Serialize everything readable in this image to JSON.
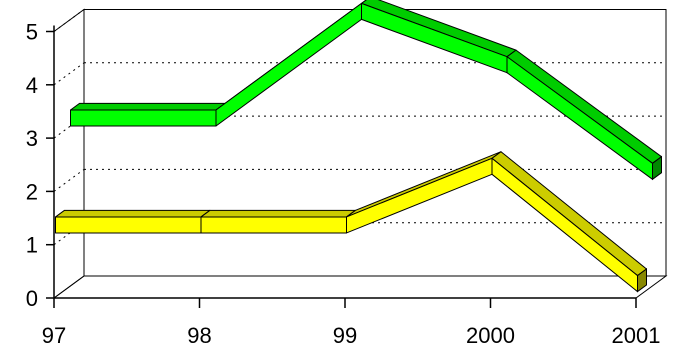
{
  "chart_data": {
    "type": "line",
    "style": "3d-ribbon",
    "categories": [
      "97",
      "98",
      "99",
      "2000",
      "2001"
    ],
    "y_ticks": [
      "0",
      "1",
      "2",
      "3",
      "4",
      "5"
    ],
    "ylim": [
      0,
      5
    ],
    "grid": "horizontal-dotted",
    "title": "",
    "xlabel": "",
    "ylabel": "",
    "series": [
      {
        "values": [
          3.0,
          3.0,
          5.0,
          4.0,
          2.0
        ],
        "color_front": "#00ff00",
        "color_top": "#00cc00",
        "color_side": "#008800"
      },
      {
        "values": [
          1.2,
          1.2,
          1.2,
          2.3,
          0.1
        ],
        "color_front": "#ffff00",
        "color_top": "#cccc00",
        "color_side": "#888800"
      }
    ]
  }
}
